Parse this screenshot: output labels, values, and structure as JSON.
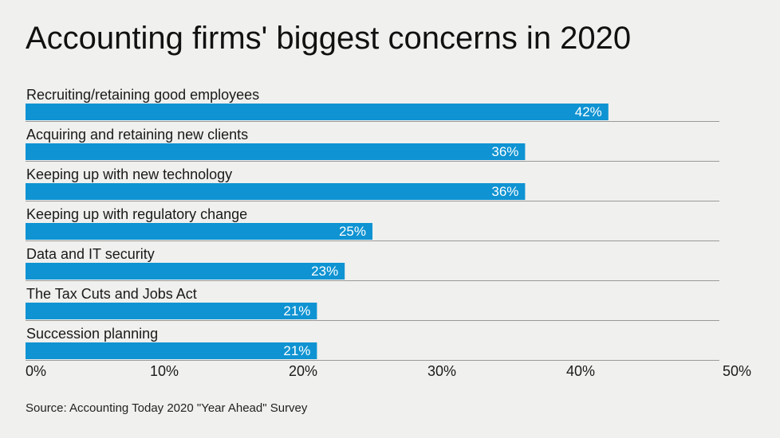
{
  "title": "Accounting firms' biggest concerns in 2020",
  "source": "Source: Accounting Today 2020 \"Year Ahead\" Survey",
  "colors": {
    "bar": "#0f93d2",
    "bar_label": "#ffffff",
    "rule": "#999999",
    "text": "#1a1a1a",
    "background": "#f0f0ee"
  },
  "chart_data": {
    "type": "bar",
    "orientation": "horizontal",
    "title": "Accounting firms' biggest concerns in 2020",
    "categories": [
      "Recruiting/retaining good employees",
      "Acquiring and retaining new clients",
      "Keeping up with new technology",
      "Keeping up with regulatory change",
      "Data and IT security",
      "The Tax Cuts and Jobs Act",
      "Succession planning"
    ],
    "values": [
      42,
      36,
      36,
      25,
      23,
      21,
      21
    ],
    "value_labels": [
      "42%",
      "36%",
      "36%",
      "25%",
      "23%",
      "21%",
      "21%"
    ],
    "xlim": [
      0,
      50
    ],
    "x_ticks": [
      0,
      10,
      20,
      30,
      40,
      50
    ],
    "x_tick_labels": [
      "0%",
      "10%",
      "20%",
      "30%",
      "40%",
      "50%"
    ],
    "xlabel": "",
    "ylabel": "",
    "grid": false,
    "legend": "none"
  }
}
